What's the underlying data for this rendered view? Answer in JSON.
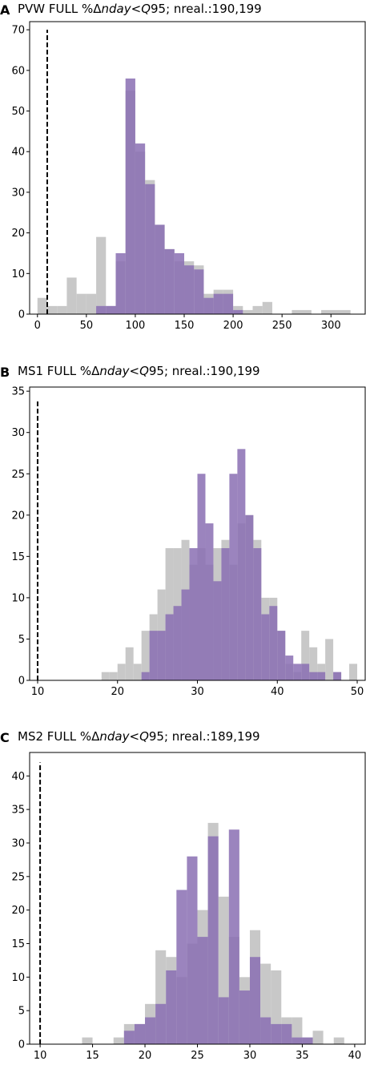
{
  "colors": {
    "series1": "#c8c8c8",
    "series2": "#8a6fb3",
    "reference_line": "#000000"
  },
  "chart_data": [
    {
      "letter": "A",
      "type": "histogram",
      "title_parts": [
        "PVW FULL %Δ",
        "nday",
        "<",
        "Q",
        "95; nreal.:190,199"
      ],
      "xlim": [
        -8,
        335
      ],
      "ylim": [
        0,
        72
      ],
      "xticks": [
        0,
        50,
        100,
        150,
        200,
        250,
        300
      ],
      "yticks": [
        0,
        10,
        20,
        30,
        40,
        50,
        60,
        70
      ],
      "vline_x": 10,
      "vline_ymax": 70,
      "series": [
        {
          "color": "#c8c8c8",
          "bins": [
            [
              0,
              10,
              4
            ],
            [
              10,
              20,
              2
            ],
            [
              20,
              30,
              2
            ],
            [
              30,
              40,
              9
            ],
            [
              40,
              50,
              5
            ],
            [
              50,
              60,
              5
            ],
            [
              60,
              70,
              19
            ],
            [
              70,
              80,
              2
            ],
            [
              80,
              90,
              13
            ],
            [
              90,
              100,
              55
            ],
            [
              100,
              110,
              40
            ],
            [
              110,
              120,
              33
            ],
            [
              120,
              130,
              22
            ],
            [
              130,
              140,
              16
            ],
            [
              140,
              150,
              13
            ],
            [
              150,
              160,
              13
            ],
            [
              160,
              170,
              12
            ],
            [
              170,
              180,
              5
            ],
            [
              180,
              190,
              6
            ],
            [
              190,
              200,
              6
            ],
            [
              200,
              210,
              2
            ],
            [
              210,
              220,
              1
            ],
            [
              220,
              230,
              2
            ],
            [
              230,
              240,
              3
            ],
            [
              260,
              280,
              1
            ],
            [
              290,
              320,
              1
            ]
          ]
        },
        {
          "color": "#8a6fb3",
          "bins": [
            [
              60,
              70,
              2
            ],
            [
              70,
              80,
              2
            ],
            [
              80,
              90,
              15
            ],
            [
              90,
              100,
              58
            ],
            [
              100,
              110,
              42
            ],
            [
              110,
              120,
              32
            ],
            [
              120,
              130,
              22
            ],
            [
              130,
              140,
              16
            ],
            [
              140,
              150,
              15
            ],
            [
              150,
              160,
              12
            ],
            [
              160,
              170,
              11
            ],
            [
              170,
              180,
              4
            ],
            [
              180,
              190,
              5
            ],
            [
              190,
              200,
              5
            ],
            [
              200,
              210,
              1
            ]
          ]
        }
      ]
    },
    {
      "letter": "B",
      "type": "histogram",
      "title_parts": [
        "MS1 FULL %Δ",
        "nday",
        "<",
        "Q",
        "95; nreal.:190,199"
      ],
      "xlim": [
        9,
        51
      ],
      "ylim": [
        0,
        35.5
      ],
      "xticks": [
        10,
        20,
        30,
        40,
        50
      ],
      "yticks": [
        0,
        5,
        10,
        15,
        20,
        25,
        30,
        35
      ],
      "vline_x": 10,
      "vline_ymax": 34,
      "series": [
        {
          "color": "#c8c8c8",
          "bins": [
            [
              18,
              19,
              1
            ],
            [
              19,
              20,
              1
            ],
            [
              20,
              21,
              2
            ],
            [
              21,
              22,
              4
            ],
            [
              22,
              23,
              2
            ],
            [
              23,
              24,
              6
            ],
            [
              24,
              25,
              8
            ],
            [
              25,
              26,
              11
            ],
            [
              26,
              27,
              16
            ],
            [
              27,
              28,
              16
            ],
            [
              28,
              29,
              17
            ],
            [
              29,
              30,
              14
            ],
            [
              30,
              31,
              16
            ],
            [
              31,
              32,
              14
            ],
            [
              32,
              33,
              16
            ],
            [
              33,
              34,
              17
            ],
            [
              34,
              35,
              14
            ],
            [
              35,
              36,
              19
            ],
            [
              36,
              37,
              20
            ],
            [
              37,
              38,
              17
            ],
            [
              38,
              39,
              10
            ],
            [
              39,
              40,
              10
            ],
            [
              40,
              41,
              6
            ],
            [
              41,
              42,
              2
            ],
            [
              42,
              43,
              1
            ],
            [
              43,
              44,
              6
            ],
            [
              44,
              45,
              4
            ],
            [
              45,
              46,
              2
            ],
            [
              46,
              47,
              5
            ],
            [
              47,
              48,
              1
            ],
            [
              49,
              50,
              2
            ]
          ]
        },
        {
          "color": "#8a6fb3",
          "bins": [
            [
              23,
              24,
              1
            ],
            [
              24,
              25,
              6
            ],
            [
              25,
              26,
              6
            ],
            [
              26,
              27,
              8
            ],
            [
              27,
              28,
              9
            ],
            [
              28,
              29,
              11
            ],
            [
              29,
              30,
              16
            ],
            [
              30,
              31,
              25
            ],
            [
              31,
              32,
              19
            ],
            [
              32,
              33,
              12
            ],
            [
              33,
              34,
              16
            ],
            [
              34,
              35,
              25
            ],
            [
              35,
              36,
              28
            ],
            [
              36,
              37,
              20
            ],
            [
              37,
              38,
              16
            ],
            [
              38,
              39,
              8
            ],
            [
              39,
              40,
              9
            ],
            [
              40,
              41,
              6
            ],
            [
              41,
              42,
              3
            ],
            [
              42,
              43,
              2
            ],
            [
              43,
              44,
              2
            ],
            [
              44,
              45,
              1
            ],
            [
              45,
              46,
              1
            ],
            [
              47,
              48,
              1
            ]
          ]
        }
      ]
    },
    {
      "letter": "C",
      "type": "histogram",
      "title_parts": [
        "MS2 FULL %Δ",
        "nday",
        "<",
        "Q",
        "95; nreal.:189,199"
      ],
      "xlim": [
        9,
        41
      ],
      "ylim": [
        0,
        43.5
      ],
      "xticks": [
        10,
        15,
        20,
        25,
        30,
        35,
        40
      ],
      "yticks": [
        0,
        5,
        10,
        15,
        20,
        25,
        30,
        35,
        40
      ],
      "vline_x": 10,
      "vline_ymax": 42,
      "series": [
        {
          "color": "#c8c8c8",
          "bins": [
            [
              14,
              15,
              1
            ],
            [
              17,
              18,
              1
            ],
            [
              18,
              19,
              3
            ],
            [
              19,
              20,
              3
            ],
            [
              20,
              21,
              6
            ],
            [
              21,
              22,
              14
            ],
            [
              22,
              23,
              13
            ],
            [
              23,
              24,
              10
            ],
            [
              24,
              25,
              15
            ],
            [
              25,
              26,
              20
            ],
            [
              26,
              27,
              33
            ],
            [
              27,
              28,
              22
            ],
            [
              28,
              29,
              16
            ],
            [
              29,
              30,
              10
            ],
            [
              30,
              31,
              17
            ],
            [
              31,
              32,
              12
            ],
            [
              32,
              33,
              11
            ],
            [
              33,
              34,
              4
            ],
            [
              34,
              35,
              4
            ],
            [
              35,
              36,
              1
            ],
            [
              36,
              37,
              2
            ],
            [
              38,
              39,
              1
            ]
          ]
        },
        {
          "color": "#8a6fb3",
          "bins": [
            [
              18,
              19,
              2
            ],
            [
              19,
              20,
              3
            ],
            [
              20,
              21,
              4
            ],
            [
              21,
              22,
              6
            ],
            [
              22,
              23,
              11
            ],
            [
              23,
              24,
              23
            ],
            [
              24,
              25,
              28
            ],
            [
              25,
              26,
              16
            ],
            [
              26,
              27,
              31
            ],
            [
              27,
              28,
              7
            ],
            [
              28,
              29,
              32
            ],
            [
              29,
              30,
              8
            ],
            [
              30,
              31,
              13
            ],
            [
              31,
              32,
              4
            ],
            [
              32,
              33,
              3
            ],
            [
              33,
              34,
              3
            ],
            [
              34,
              35,
              1
            ],
            [
              35,
              36,
              1
            ]
          ]
        }
      ]
    }
  ]
}
